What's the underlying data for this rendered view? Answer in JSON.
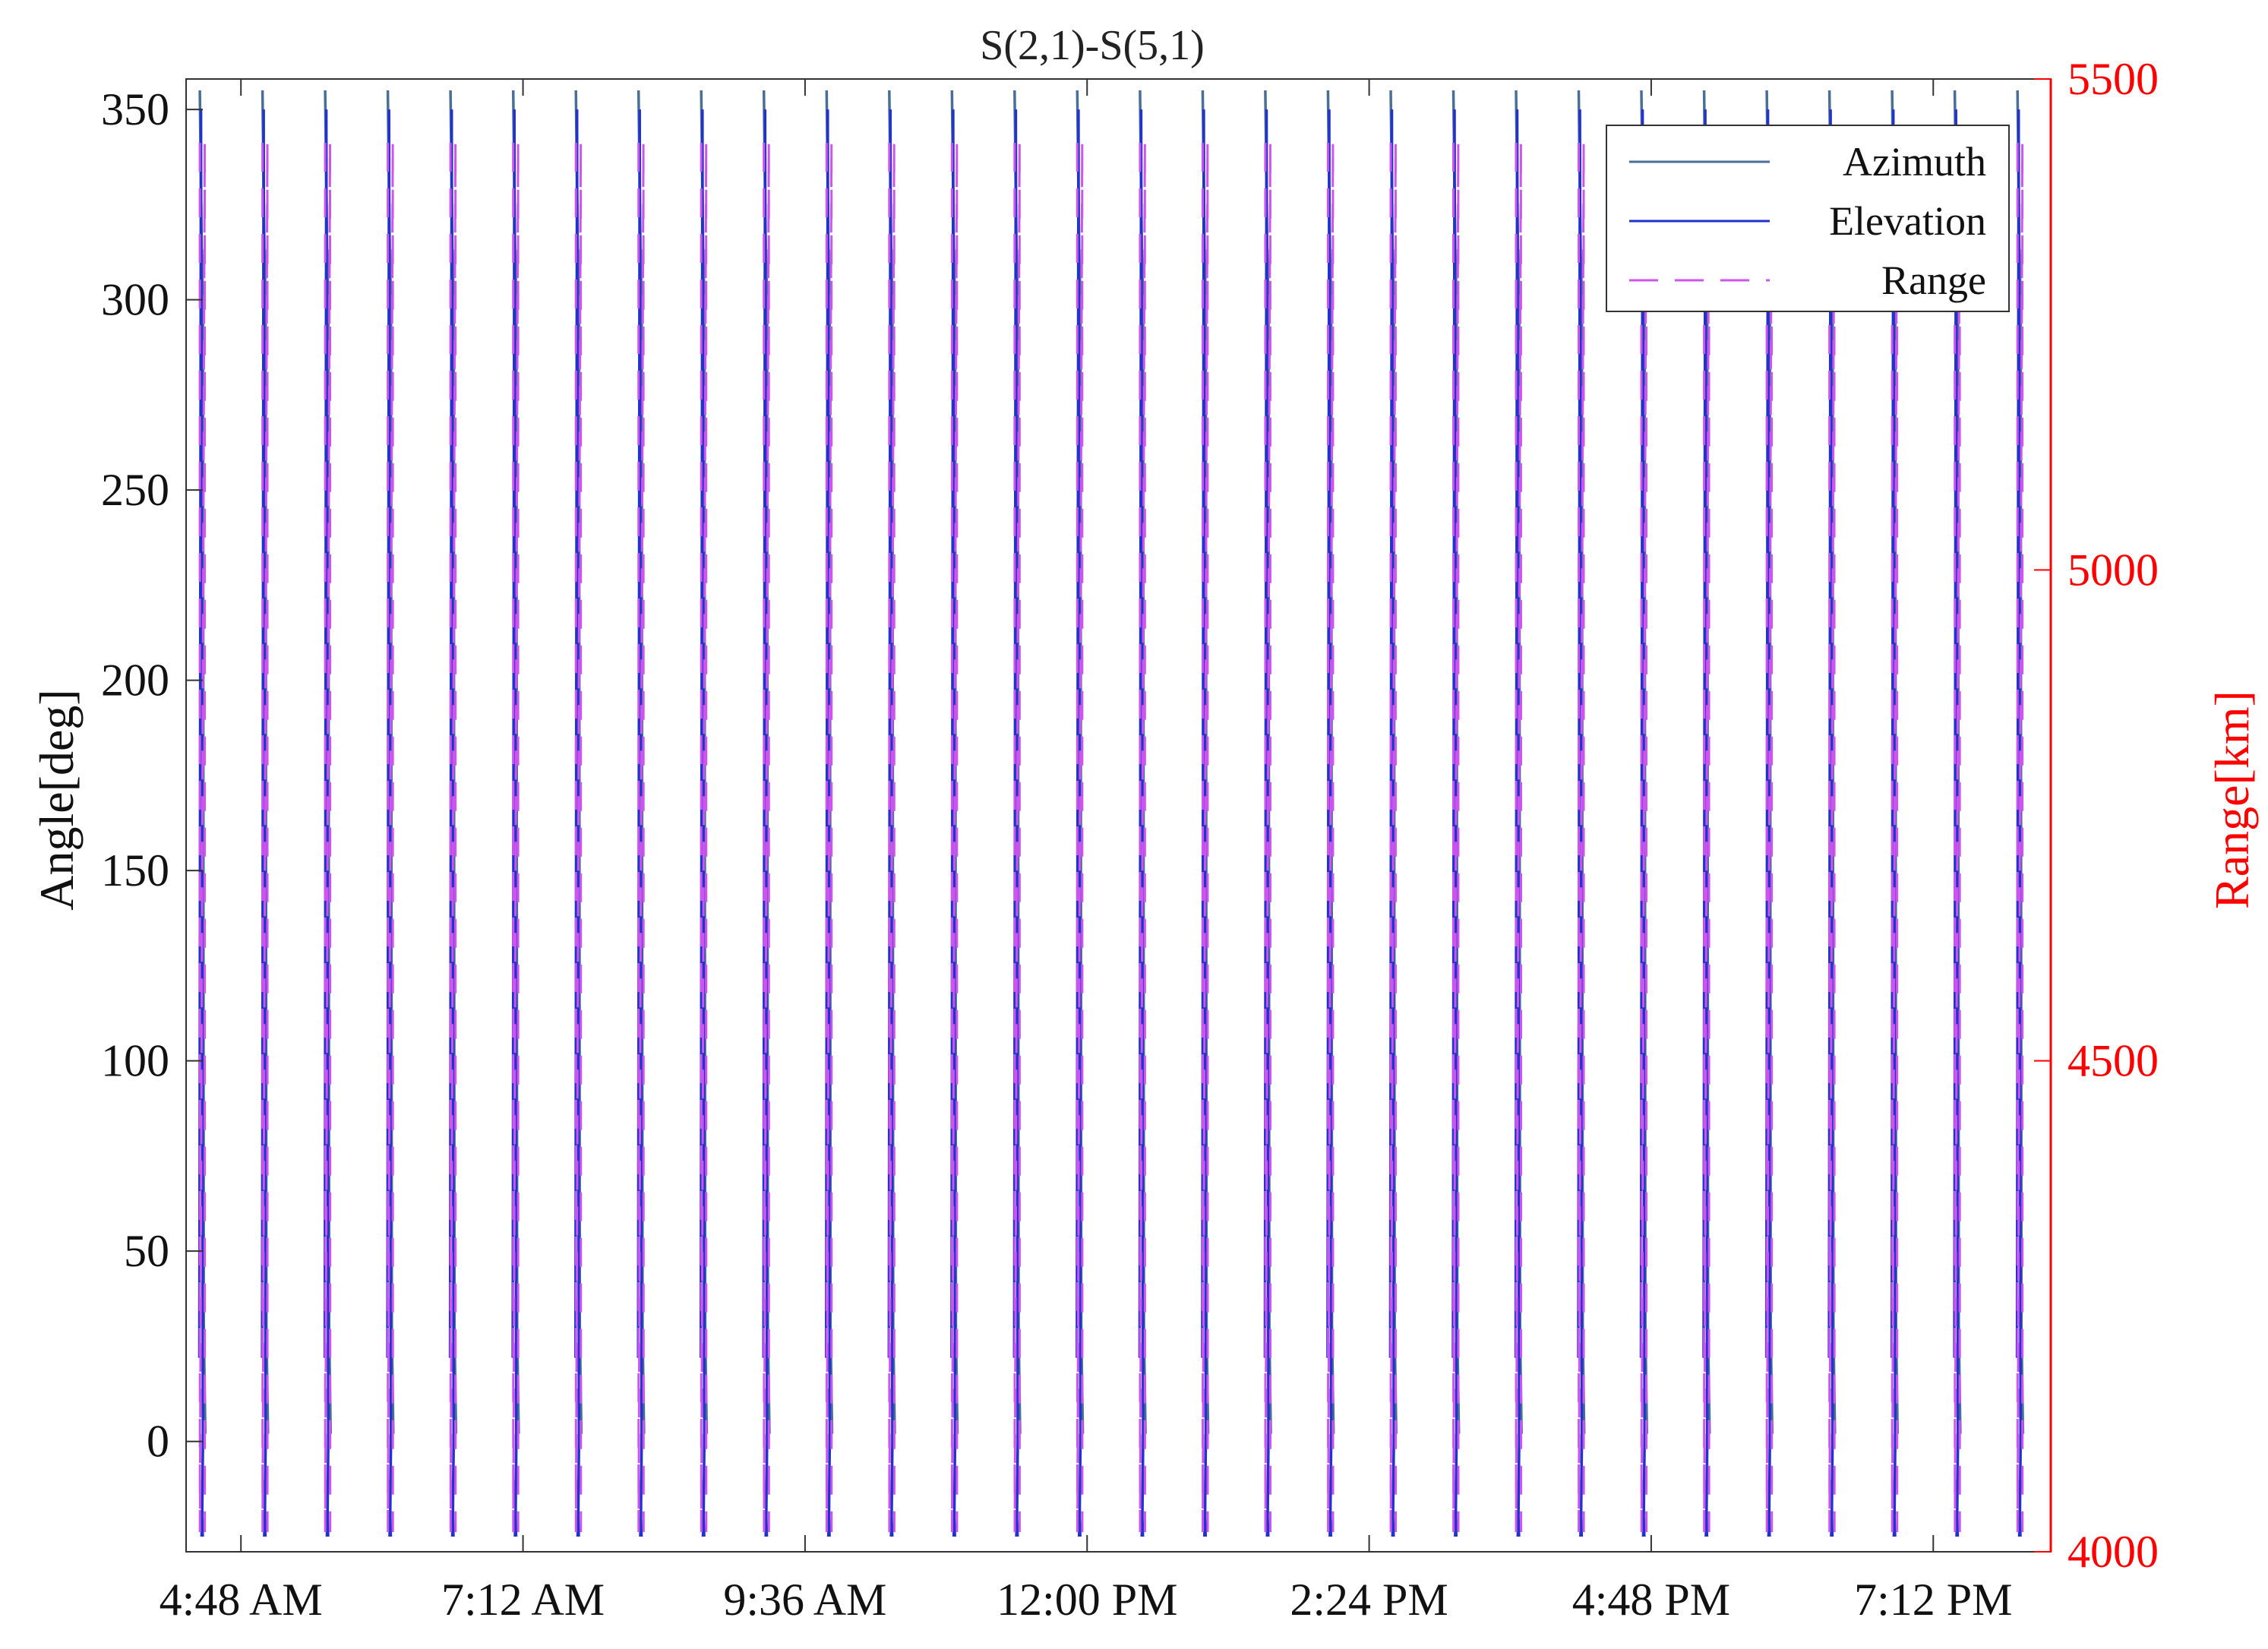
{
  "chart_data": {
    "type": "line",
    "title": "S(2,1)-S(5,1)",
    "ylabel": "Angle[deg]",
    "y2label": "Range[km]",
    "xlim": [
      "04:20",
      "20:12"
    ],
    "ylim": [
      -29,
      358
    ],
    "y2lim": [
      4000,
      5500
    ],
    "x_ticks": [
      "04:48",
      "07:12",
      "09:36",
      "12:00",
      "14:24",
      "16:48",
      "19:12"
    ],
    "x_tick_labels": [
      "4:48 AM",
      "7:12 AM",
      "9:36 AM",
      "12:00 PM",
      "2:24 PM",
      "4:48 PM",
      "7:12 PM"
    ],
    "y_ticks": [
      0,
      50,
      100,
      150,
      200,
      250,
      300,
      350
    ],
    "y_tick_labels": [
      "0",
      "50",
      "100",
      "150",
      "200",
      "250",
      "300",
      "350"
    ],
    "y2_ticks": [
      4000,
      4500,
      5000,
      5500
    ],
    "y2_tick_labels": [
      "4000",
      "4500",
      "5000",
      "5500"
    ],
    "grid": false,
    "legend_position": "top-right",
    "period_minutes": 32,
    "first_pass": "04:27",
    "pass_count": 30,
    "series": [
      {
        "name": "Azimuth",
        "axis": "left",
        "style": "solid",
        "color": "#4a6f96",
        "pass_profile": [
          {
            "t_min": 0,
            "value": 355
          },
          {
            "t_min": 1,
            "value": 312
          },
          {
            "t_min": 1.6,
            "value": 300
          },
          {
            "t_min": 2,
            "value": 30
          },
          {
            "t_min": 2.8,
            "value": 2
          }
        ]
      },
      {
        "name": "Elevation",
        "axis": "left",
        "style": "solid",
        "color": "#2233cc",
        "pass_profile": [
          {
            "t_min": -0.2,
            "value": 22
          },
          {
            "t_min": 0.6,
            "value": 350
          },
          {
            "t_min": 1.6,
            "value": 0
          },
          {
            "t_min": 1.2,
            "value": -20
          },
          {
            "t_min": 0.9,
            "value": -25
          },
          {
            "t_min": 1.2,
            "value": -20
          },
          {
            "t_min": 1.5,
            "value": -25
          }
        ]
      },
      {
        "name": "Range",
        "axis": "right",
        "style": "dashed",
        "color": "#cc55ee",
        "pass_profile": [
          {
            "t_min": 0,
            "value": 5435
          },
          {
            "t_min": 0.05,
            "value": 4020
          },
          {
            "t_min": 2.5,
            "value": 5435
          },
          {
            "t_min": 2.55,
            "value": 4020
          }
        ]
      }
    ]
  }
}
